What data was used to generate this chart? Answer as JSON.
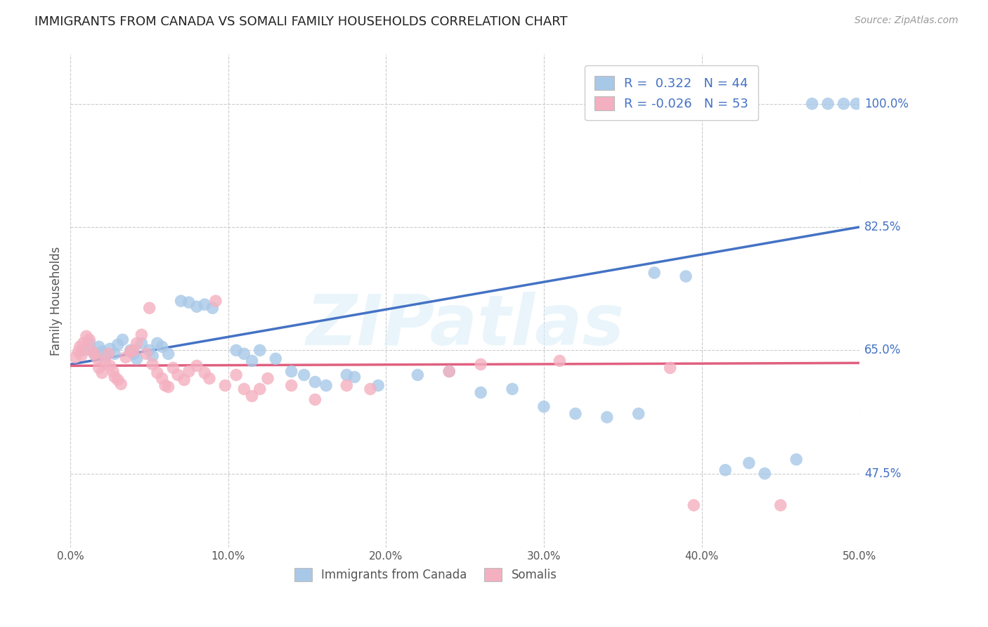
{
  "title": "IMMIGRANTS FROM CANADA VS SOMALI FAMILY HOUSEHOLDS CORRELATION CHART",
  "source": "Source: ZipAtlas.com",
  "ylabel": "Family Households",
  "ytick_labels": [
    "47.5%",
    "65.0%",
    "82.5%",
    "100.0%"
  ],
  "ytick_values": [
    0.475,
    0.65,
    0.825,
    1.0
  ],
  "xlim": [
    0.0,
    0.5
  ],
  "ylim": [
    0.37,
    1.07
  ],
  "watermark": "ZIPatlas",
  "blue_color": "#A8C8E8",
  "pink_color": "#F4B0C0",
  "blue_line_color": "#4472C4",
  "pink_line_color": "#E06080",
  "blue_scatter": [
    [
      0.008,
      0.65
    ],
    [
      0.012,
      0.66
    ],
    [
      0.015,
      0.645
    ],
    [
      0.018,
      0.655
    ],
    [
      0.02,
      0.648
    ],
    [
      0.022,
      0.64
    ],
    [
      0.025,
      0.652
    ],
    [
      0.028,
      0.645
    ],
    [
      0.03,
      0.658
    ],
    [
      0.033,
      0.665
    ],
    [
      0.038,
      0.65
    ],
    [
      0.04,
      0.645
    ],
    [
      0.042,
      0.638
    ],
    [
      0.045,
      0.66
    ],
    [
      0.05,
      0.65
    ],
    [
      0.052,
      0.642
    ],
    [
      0.055,
      0.66
    ],
    [
      0.058,
      0.655
    ],
    [
      0.062,
      0.645
    ],
    [
      0.07,
      0.72
    ],
    [
      0.075,
      0.718
    ],
    [
      0.08,
      0.712
    ],
    [
      0.085,
      0.715
    ],
    [
      0.09,
      0.71
    ],
    [
      0.105,
      0.65
    ],
    [
      0.11,
      0.645
    ],
    [
      0.115,
      0.635
    ],
    [
      0.12,
      0.65
    ],
    [
      0.13,
      0.638
    ],
    [
      0.14,
      0.62
    ],
    [
      0.148,
      0.615
    ],
    [
      0.155,
      0.605
    ],
    [
      0.162,
      0.6
    ],
    [
      0.175,
      0.615
    ],
    [
      0.18,
      0.612
    ],
    [
      0.195,
      0.6
    ],
    [
      0.22,
      0.615
    ],
    [
      0.24,
      0.62
    ],
    [
      0.26,
      0.59
    ],
    [
      0.28,
      0.595
    ],
    [
      0.3,
      0.57
    ],
    [
      0.32,
      0.56
    ],
    [
      0.34,
      0.555
    ],
    [
      0.36,
      0.56
    ],
    [
      0.37,
      0.76
    ],
    [
      0.39,
      0.755
    ],
    [
      0.415,
      0.48
    ],
    [
      0.43,
      0.49
    ],
    [
      0.44,
      0.475
    ],
    [
      0.46,
      0.495
    ],
    [
      0.47,
      1.0
    ],
    [
      0.48,
      1.0
    ],
    [
      0.49,
      1.0
    ],
    [
      0.498,
      1.0
    ]
  ],
  "pink_scatter": [
    [
      0.003,
      0.64
    ],
    [
      0.005,
      0.648
    ],
    [
      0.006,
      0.655
    ],
    [
      0.007,
      0.643
    ],
    [
      0.008,
      0.66
    ],
    [
      0.01,
      0.67
    ],
    [
      0.012,
      0.665
    ],
    [
      0.013,
      0.65
    ],
    [
      0.015,
      0.645
    ],
    [
      0.017,
      0.638
    ],
    [
      0.018,
      0.625
    ],
    [
      0.02,
      0.618
    ],
    [
      0.022,
      0.632
    ],
    [
      0.024,
      0.645
    ],
    [
      0.025,
      0.628
    ],
    [
      0.027,
      0.62
    ],
    [
      0.028,
      0.612
    ],
    [
      0.03,
      0.608
    ],
    [
      0.032,
      0.602
    ],
    [
      0.035,
      0.64
    ],
    [
      0.038,
      0.648
    ],
    [
      0.04,
      0.65
    ],
    [
      0.042,
      0.66
    ],
    [
      0.045,
      0.672
    ],
    [
      0.048,
      0.645
    ],
    [
      0.05,
      0.71
    ],
    [
      0.052,
      0.63
    ],
    [
      0.055,
      0.618
    ],
    [
      0.058,
      0.61
    ],
    [
      0.06,
      0.6
    ],
    [
      0.062,
      0.598
    ],
    [
      0.065,
      0.625
    ],
    [
      0.068,
      0.615
    ],
    [
      0.072,
      0.608
    ],
    [
      0.075,
      0.62
    ],
    [
      0.08,
      0.628
    ],
    [
      0.085,
      0.618
    ],
    [
      0.088,
      0.61
    ],
    [
      0.092,
      0.72
    ],
    [
      0.098,
      0.6
    ],
    [
      0.105,
      0.615
    ],
    [
      0.11,
      0.595
    ],
    [
      0.115,
      0.585
    ],
    [
      0.12,
      0.595
    ],
    [
      0.125,
      0.61
    ],
    [
      0.14,
      0.6
    ],
    [
      0.155,
      0.58
    ],
    [
      0.175,
      0.6
    ],
    [
      0.19,
      0.595
    ],
    [
      0.24,
      0.62
    ],
    [
      0.26,
      0.63
    ],
    [
      0.31,
      0.635
    ],
    [
      0.38,
      0.625
    ],
    [
      0.395,
      0.43
    ],
    [
      0.45,
      0.43
    ]
  ]
}
